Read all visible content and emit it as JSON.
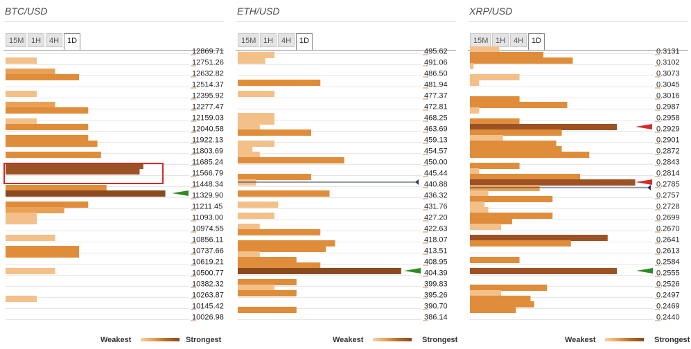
{
  "legend": {
    "weakest": "Weakest",
    "strongest": "Strongest"
  },
  "colors": {
    "lvl1": "#f3c08a",
    "lvl2": "#e9a155",
    "lvl3": "#df8d3a",
    "lvl4": "#9c5224",
    "lvl5": "#8a4a20",
    "green": "#2e8b22",
    "red": "#d62a2a",
    "navy": "#2b3a55"
  },
  "panels": [
    {
      "title": "BTC/USD",
      "tabs": [
        "15M",
        "1H",
        "4H",
        "1D"
      ],
      "active_tab": "1D"
    },
    {
      "title": "ETH/USD",
      "tabs": [
        "15M",
        "1H",
        "4H",
        "1D"
      ],
      "active_tab": "1D"
    },
    {
      "title": "XRP/USD",
      "tabs": [
        "15M",
        "1H",
        "4H",
        "1D"
      ],
      "active_tab": "1D"
    }
  ],
  "chart_data": [
    {
      "type": "bar",
      "title": "BTC/USD",
      "orientation": "horizontal",
      "price_ticks": [
        "12869.71",
        "12751.26",
        "12632.82",
        "12514.37",
        "12395.92",
        "12277.47",
        "12159.03",
        "12040.58",
        "11922.13",
        "11803.69",
        "11685.24",
        "11566.79",
        "11448.34",
        "11329.90",
        "11211.45",
        "11093.00",
        "10974.55",
        "10856.11",
        "10737.66",
        "10619.21",
        "10500.77",
        "10382.32",
        "10263.87",
        "10145.42",
        "10026.98"
      ],
      "current_price_marker": {
        "at_index": 13,
        "color": "green"
      },
      "highlighted_level_index": 11,
      "bars_note": "confluence strength per price level (0-100 scale)",
      "bars": [
        {
          "slot": 1.0,
          "value": 17,
          "level": 1
        },
        {
          "slot": 2.0,
          "value": 27,
          "level": 2
        },
        {
          "slot": 2.5,
          "value": 40,
          "level": 3
        },
        {
          "slot": 4.0,
          "value": 17,
          "level": 1
        },
        {
          "slot": 5.0,
          "value": 27,
          "level": 2
        },
        {
          "slot": 5.5,
          "value": 45,
          "level": 3
        },
        {
          "slot": 6.5,
          "value": 17,
          "level": 1
        },
        {
          "slot": 7.0,
          "value": 45,
          "level": 3
        },
        {
          "slot": 8.0,
          "value": 45,
          "level": 3
        },
        {
          "slot": 8.5,
          "value": 50,
          "level": 3
        },
        {
          "slot": 9.5,
          "value": 52,
          "level": 3
        },
        {
          "slot": 10.5,
          "value": 75,
          "level": 4
        },
        {
          "slot": 11.0,
          "value": 73,
          "level": 4
        },
        {
          "slot": 12.5,
          "value": 55,
          "level": 3
        },
        {
          "slot": 13.0,
          "value": 87,
          "level": 5
        },
        {
          "slot": 14.0,
          "value": 45,
          "level": 3
        },
        {
          "slot": 14.5,
          "value": 32,
          "level": 2
        },
        {
          "slot": 15.0,
          "value": 17,
          "level": 1
        },
        {
          "slot": 15.5,
          "value": 17,
          "level": 1
        },
        {
          "slot": 17.0,
          "value": 27,
          "level": 1
        },
        {
          "slot": 18.0,
          "value": 40,
          "level": 3
        },
        {
          "slot": 18.5,
          "value": 40,
          "level": 3
        },
        {
          "slot": 20.0,
          "value": 27,
          "level": 1
        },
        {
          "slot": 22.5,
          "value": 17,
          "level": 1
        }
      ]
    },
    {
      "type": "bar",
      "title": "ETH/USD",
      "orientation": "horizontal",
      "price_ticks": [
        "495.62",
        "491.06",
        "486.50",
        "481.94",
        "477.37",
        "472.81",
        "468.25",
        "463.69",
        "459.13",
        "454.57",
        "450.00",
        "445.44",
        "440.88",
        "436.32",
        "431.76",
        "427.20",
        "422.63",
        "418.07",
        "413.51",
        "408.95",
        "404.39",
        "399.83",
        "395.26",
        "390.70",
        "386.14"
      ],
      "current_price_marker": {
        "at_index": 20,
        "color": "green"
      },
      "price_line_index": 12,
      "bars": [
        {
          "slot": 0.5,
          "value": 20,
          "level": 1
        },
        {
          "slot": 1.0,
          "value": 15,
          "level": 1
        },
        {
          "slot": 3.0,
          "value": 45,
          "level": 3
        },
        {
          "slot": 4.0,
          "value": 20,
          "level": 1
        },
        {
          "slot": 6.0,
          "value": 20,
          "level": 1
        },
        {
          "slot": 6.5,
          "value": 20,
          "level": 1
        },
        {
          "slot": 7.0,
          "value": 12,
          "level": 1
        },
        {
          "slot": 7.5,
          "value": 40,
          "level": 3
        },
        {
          "slot": 8.5,
          "value": 20,
          "level": 1
        },
        {
          "slot": 9.0,
          "value": 8,
          "level": 1
        },
        {
          "slot": 9.5,
          "value": 12,
          "level": 1
        },
        {
          "slot": 10.0,
          "value": 58,
          "level": 3
        },
        {
          "slot": 11.5,
          "value": 40,
          "level": 3
        },
        {
          "slot": 12.0,
          "value": 10,
          "level": 1
        },
        {
          "slot": 13.0,
          "value": 50,
          "level": 3
        },
        {
          "slot": 14.0,
          "value": 22,
          "level": 1
        },
        {
          "slot": 15.0,
          "value": 20,
          "level": 1
        },
        {
          "slot": 16.0,
          "value": 12,
          "level": 1
        },
        {
          "slot": 16.5,
          "value": 45,
          "level": 3
        },
        {
          "slot": 17.5,
          "value": 53,
          "level": 3
        },
        {
          "slot": 18.0,
          "value": 48,
          "level": 3
        },
        {
          "slot": 18.5,
          "value": 12,
          "level": 1
        },
        {
          "slot": 19.0,
          "value": 32,
          "level": 3
        },
        {
          "slot": 19.5,
          "value": 45,
          "level": 3
        },
        {
          "slot": 20.0,
          "value": 89,
          "level": 5
        },
        {
          "slot": 21.0,
          "value": 32,
          "level": 3
        },
        {
          "slot": 21.5,
          "value": 20,
          "level": 1
        },
        {
          "slot": 22.0,
          "value": 32,
          "level": 3
        },
        {
          "slot": 23.5,
          "value": 32,
          "level": 3
        }
      ]
    },
    {
      "type": "bar",
      "title": "XRP/USD",
      "orientation": "horizontal",
      "price_ticks": [
        "0.3131",
        "0.3102",
        "0.3073",
        "0.3045",
        "0.3016",
        "0.2987",
        "0.2958",
        "0.2929",
        "0.2901",
        "0.2872",
        "0.2843",
        "0.2814",
        "0.2785",
        "0.2757",
        "0.2728",
        "0.2699",
        "0.2670",
        "0.2641",
        "0.2613",
        "0.2584",
        "0.2555",
        "0.2526",
        "0.2497",
        "0.2469",
        "0.2440"
      ],
      "current_price_markers": [
        {
          "at_index": 7,
          "color": "red"
        },
        {
          "at_index": 12,
          "color": "red"
        },
        {
          "at_index": 20,
          "color": "green"
        }
      ],
      "price_line_index": 12.5,
      "bars": [
        {
          "slot": 0.0,
          "value": 16,
          "level": 1
        },
        {
          "slot": 0.5,
          "value": 40,
          "level": 3
        },
        {
          "slot": 1.0,
          "value": 56,
          "level": 3
        },
        {
          "slot": 1.5,
          "value": 2,
          "level": 1
        },
        {
          "slot": 2.5,
          "value": 27,
          "level": 1
        },
        {
          "slot": 3.0,
          "value": 5,
          "level": 1
        },
        {
          "slot": 4.5,
          "value": 27,
          "level": 3
        },
        {
          "slot": 5.0,
          "value": 53,
          "level": 3
        },
        {
          "slot": 5.5,
          "value": 5,
          "level": 1
        },
        {
          "slot": 6.5,
          "value": 27,
          "level": 3
        },
        {
          "slot": 7.0,
          "value": 80,
          "level": 4
        },
        {
          "slot": 7.5,
          "value": 50,
          "level": 3
        },
        {
          "slot": 8.0,
          "value": 18,
          "level": 1
        },
        {
          "slot": 8.5,
          "value": 47,
          "level": 3
        },
        {
          "slot": 9.0,
          "value": 50,
          "level": 3
        },
        {
          "slot": 9.5,
          "value": 65,
          "level": 3
        },
        {
          "slot": 10.5,
          "value": 27,
          "level": 3
        },
        {
          "slot": 11.0,
          "value": 5,
          "level": 1
        },
        {
          "slot": 11.5,
          "value": 60,
          "level": 3
        },
        {
          "slot": 12.0,
          "value": 90,
          "level": 4
        },
        {
          "slot": 12.5,
          "value": 38,
          "level": 2
        },
        {
          "slot": 13.0,
          "value": 10,
          "level": 1
        },
        {
          "slot": 13.5,
          "value": 45,
          "level": 3
        },
        {
          "slot": 14.0,
          "value": 8,
          "level": 1
        },
        {
          "slot": 14.5,
          "value": 10,
          "level": 1
        },
        {
          "slot": 15.0,
          "value": 45,
          "level": 3
        },
        {
          "slot": 15.5,
          "value": 23,
          "level": 3
        },
        {
          "slot": 16.0,
          "value": 17,
          "level": 1
        },
        {
          "slot": 17.0,
          "value": 75,
          "level": 4
        },
        {
          "slot": 17.5,
          "value": 55,
          "level": 3
        },
        {
          "slot": 19.0,
          "value": 27,
          "level": 3
        },
        {
          "slot": 20.0,
          "value": 80,
          "level": 4
        },
        {
          "slot": 21.5,
          "value": 42,
          "level": 3
        },
        {
          "slot": 22.0,
          "value": 17,
          "level": 1
        },
        {
          "slot": 22.5,
          "value": 33,
          "level": 3
        },
        {
          "slot": 23.0,
          "value": 35,
          "level": 3
        },
        {
          "slot": 23.5,
          "value": 25,
          "level": 3
        }
      ]
    }
  ]
}
